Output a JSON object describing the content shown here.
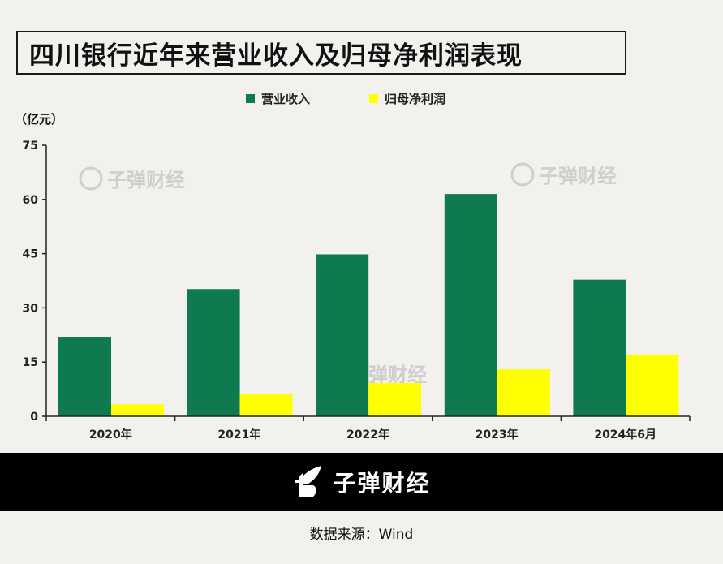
{
  "title": "四川银行近年来营业收入及归母净利润表现",
  "brand": {
    "watermark_text": "子弹财经",
    "footer_logo_text": "子弹财经",
    "logo_icon": "rocket-logo-icon"
  },
  "source": "数据来源：Wind",
  "chart_data": {
    "type": "bar",
    "unit_label": "（亿元）",
    "categories": [
      "2020年",
      "2021年",
      "2022年",
      "2023年",
      "2024年6月"
    ],
    "series": [
      {
        "name": "营业收入",
        "color": "#0f7a4d",
        "values": [
          22.0,
          35.2,
          44.8,
          61.5,
          37.8
        ]
      },
      {
        "name": "归母净利润",
        "color": "#ffff00",
        "values": [
          3.3,
          6.3,
          9.2,
          13.0,
          17.1
        ]
      }
    ],
    "ylim": [
      0,
      75
    ],
    "yticks": [
      0,
      15,
      30,
      45,
      60,
      75
    ],
    "legend_position": "top-center",
    "grid": false
  }
}
